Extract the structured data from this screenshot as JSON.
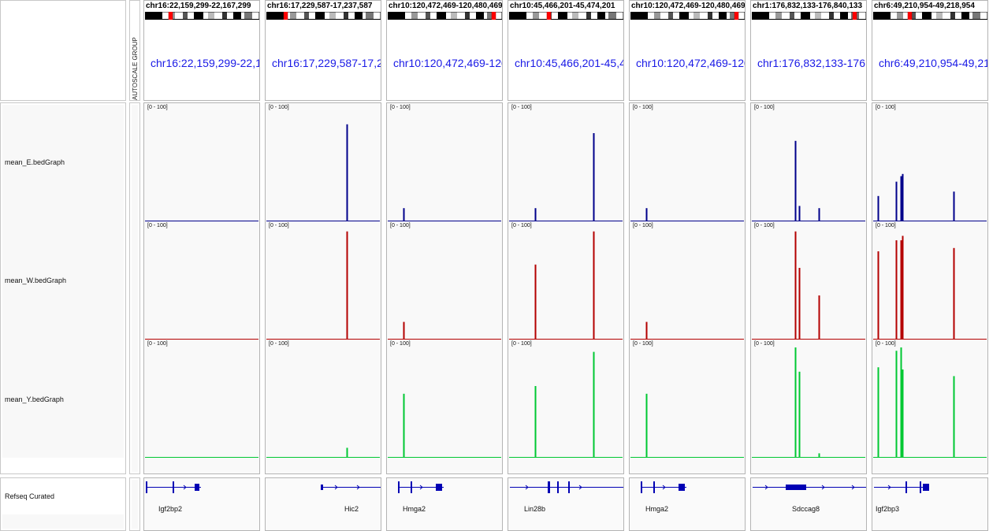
{
  "attribute_header": "AUTOSCALE GROUP",
  "track_names": [
    "mean_E.bedGraph",
    "mean_W.bedGraph",
    "mean_Y.bedGraph",
    "Refseq Curated"
  ],
  "colors": {
    "mean_E": "#00008b",
    "mean_W": "#b40000",
    "mean_Y": "#00c832",
    "gene": "#0000b4",
    "locus": "#1a1ae6"
  },
  "panels": [
    {
      "locus": "chr16:22,159,299-22,167,299",
      "gene": "Igf2bp2",
      "range": "[0 - 100]",
      "E": [],
      "W": [],
      "Y": []
    },
    {
      "locus": "chr16:17,229,587-17,237,587",
      "gene": "Hic2",
      "range": "[0 - 100]",
      "E": [
        [
          0.71,
          0.88
        ]
      ],
      "W": [
        [
          0.71,
          0.98
        ]
      ],
      "Y": [
        [
          0.71,
          0.09
        ]
      ]
    },
    {
      "locus": "chr10:120,472,469-120,480,469",
      "gene": "Hmga2",
      "range": "[0 - 100]",
      "E": [
        [
          0.14,
          0.12
        ]
      ],
      "W": [
        [
          0.14,
          0.16
        ]
      ],
      "Y": [
        [
          0.14,
          0.58
        ]
      ]
    },
    {
      "locus": "chr10:45,466,201-45,474,201",
      "gene": "Lin28b",
      "range": "[0 - 100]",
      "E": [
        [
          0.23,
          0.12
        ],
        [
          0.74,
          0.8
        ]
      ],
      "W": [
        [
          0.23,
          0.68
        ],
        [
          0.74,
          0.98
        ]
      ],
      "Y": [
        [
          0.23,
          0.65
        ],
        [
          0.74,
          0.96
        ]
      ]
    },
    {
      "locus": "chr10:120,472,469-120,480,469",
      "gene": "Hmga2",
      "range": "[0 - 100]",
      "E": [
        [
          0.14,
          0.12
        ]
      ],
      "W": [
        [
          0.14,
          0.16
        ]
      ],
      "Y": [
        [
          0.14,
          0.58
        ]
      ]
    },
    {
      "locus": "chr1:176,832,133-176,840,133",
      "gene": "Sdccag8",
      "range": "[0 - 100]",
      "E": [
        [
          0.38,
          0.73
        ],
        [
          0.42,
          0.14
        ],
        [
          0.59,
          0.12
        ]
      ],
      "W": [
        [
          0.38,
          0.98
        ],
        [
          0.42,
          0.65
        ],
        [
          0.59,
          0.4
        ]
      ],
      "Y": [
        [
          0.38,
          1.0
        ],
        [
          0.42,
          0.78
        ],
        [
          0.59,
          0.04
        ]
      ]
    },
    {
      "locus": "chr6:49,210,954-49,218,954",
      "gene": "Igf2bp3",
      "range": "[0 - 100]",
      "E": [
        [
          0.04,
          0.23
        ],
        [
          0.2,
          0.36
        ],
        [
          0.24,
          0.41
        ],
        [
          0.26,
          0.43
        ],
        [
          0.71,
          0.27
        ]
      ],
      "W": [
        [
          0.04,
          0.8
        ],
        [
          0.2,
          0.9
        ],
        [
          0.24,
          0.9
        ],
        [
          0.26,
          0.94
        ],
        [
          0.71,
          0.83
        ]
      ],
      "Y": [
        [
          0.04,
          0.82
        ],
        [
          0.2,
          0.97
        ],
        [
          0.24,
          1.0
        ],
        [
          0.26,
          0.8
        ],
        [
          0.71,
          0.74
        ]
      ]
    }
  ]
}
